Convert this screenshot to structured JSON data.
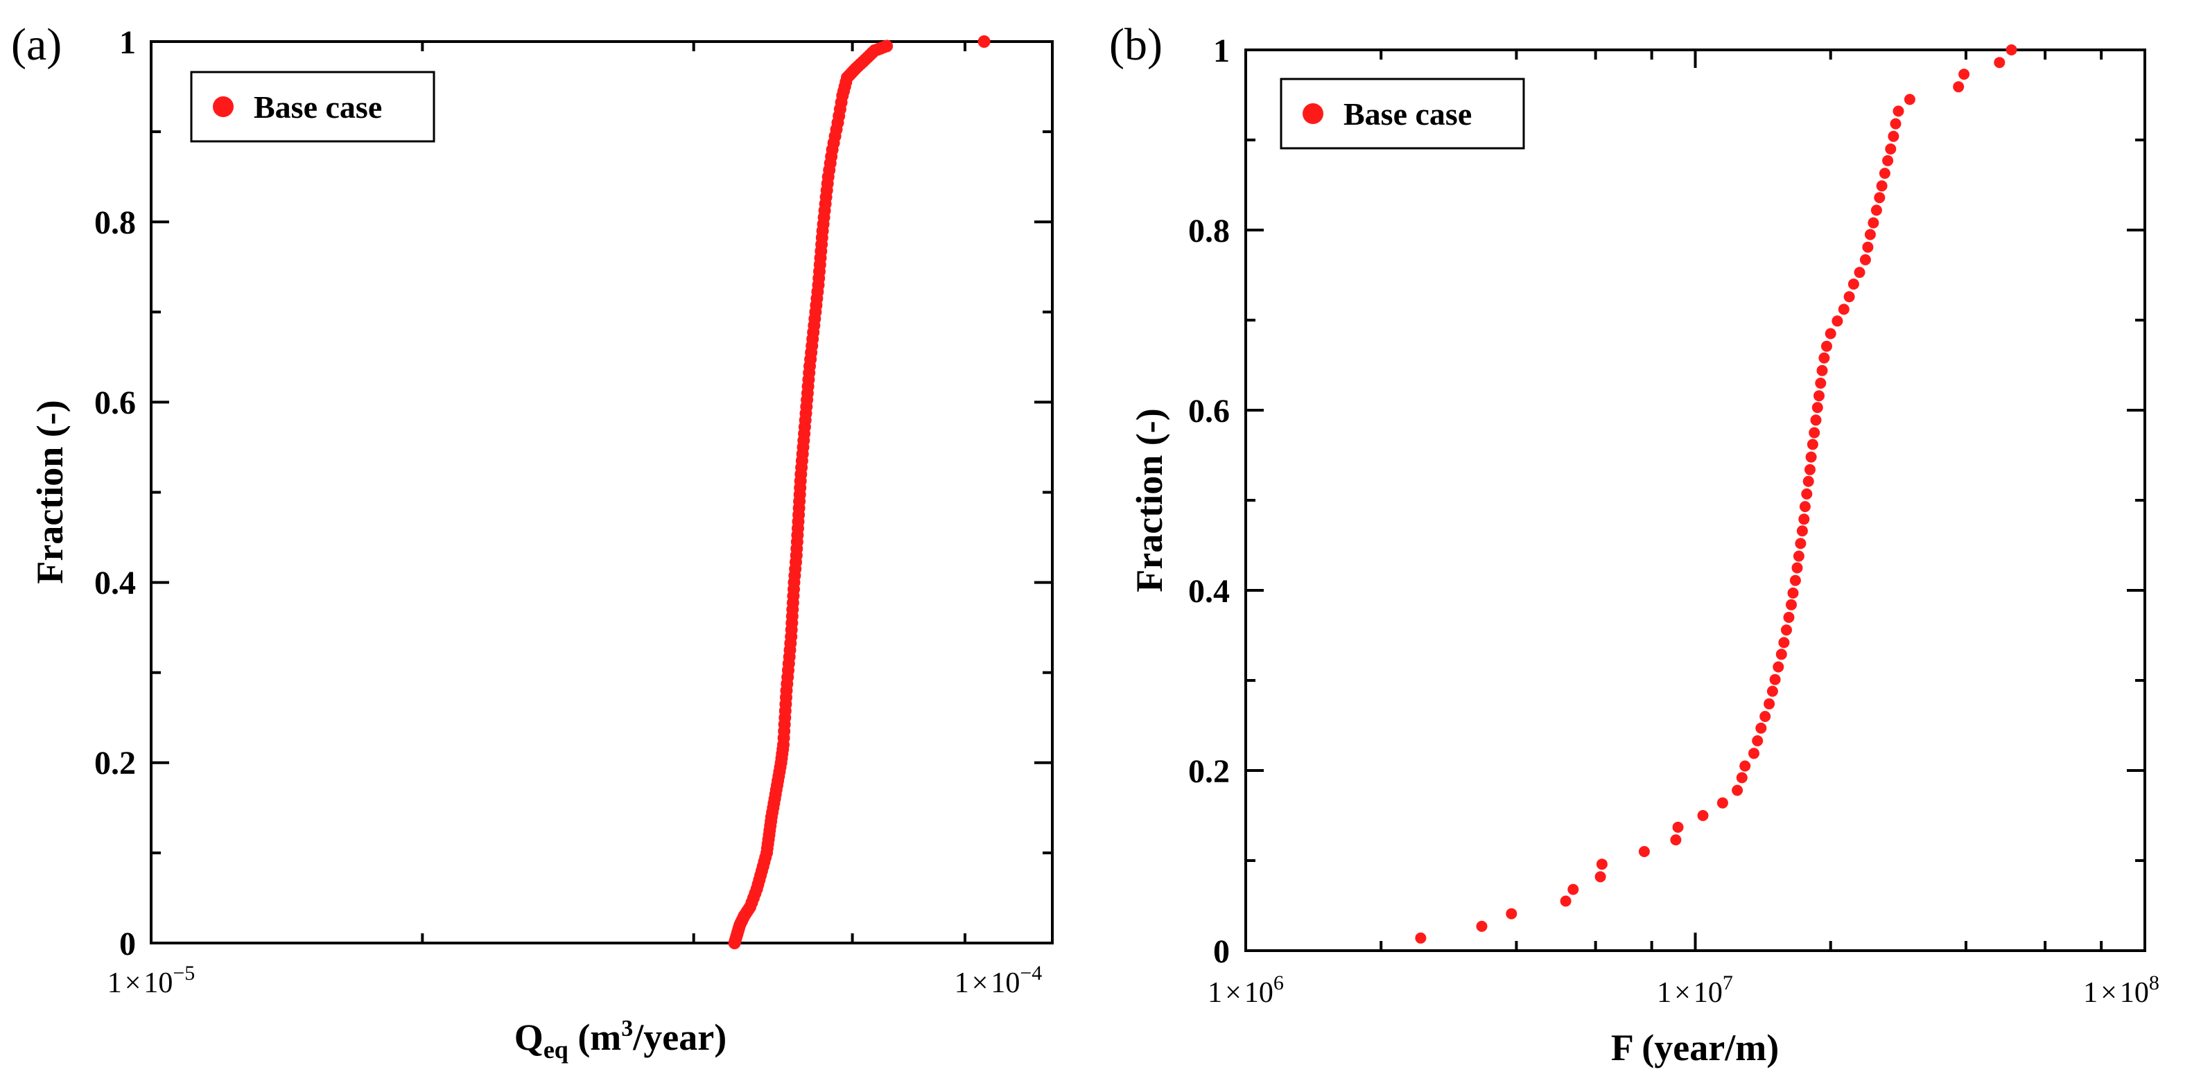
{
  "colors": {
    "marker": "#ff1a1a",
    "axis": "#000000",
    "background": "#ffffff"
  },
  "chart_data": [
    {
      "panel": "(a)",
      "type": "scatter",
      "title": "",
      "xlabel": "Q",
      "xlabel_sub": "eq",
      "xlabel_unit_pre": " (m",
      "xlabel_sup": "3",
      "xlabel_unit_post": "/year)",
      "ylabel": "Fraction (-)",
      "xscale": "log",
      "xlim": [
        1e-05,
        0.0001
      ],
      "ylim": [
        0,
        1
      ],
      "xticks": [
        {
          "mant": "1",
          "times": "×",
          "base": "10",
          "exp": "−5"
        },
        {
          "mant": "1",
          "times": "×",
          "base": "10",
          "exp": "−4"
        }
      ],
      "yticks": [
        "0",
        "0.2",
        "0.4",
        "0.6",
        "0.8",
        "1"
      ],
      "legend": {
        "label": "Base case",
        "position": "top-left"
      },
      "series": [
        {
          "name": "Base case",
          "points": [
            [
              4.44e-05,
              0.0
            ],
            [
              4.47e-05,
              0.01
            ],
            [
              4.5e-05,
              0.02
            ],
            [
              4.55e-05,
              0.03
            ],
            [
              4.62e-05,
              0.04
            ],
            [
              4.7e-05,
              0.06
            ],
            [
              4.76e-05,
              0.08
            ],
            [
              4.82e-05,
              0.1
            ],
            [
              4.85e-05,
              0.12
            ],
            [
              4.88e-05,
              0.14
            ],
            [
              4.92e-05,
              0.16
            ],
            [
              4.96e-05,
              0.18
            ],
            [
              5e-05,
              0.2
            ],
            [
              5.03e-05,
              0.22
            ],
            [
              5.05e-05,
              0.25
            ],
            [
              5.07e-05,
              0.28
            ],
            [
              5.1e-05,
              0.31
            ],
            [
              5.13e-05,
              0.34
            ],
            [
              5.15e-05,
              0.37
            ],
            [
              5.17e-05,
              0.4
            ],
            [
              5.2e-05,
              0.43
            ],
            [
              5.22e-05,
              0.46
            ],
            [
              5.24e-05,
              0.49
            ],
            [
              5.26e-05,
              0.52
            ],
            [
              5.29e-05,
              0.55
            ],
            [
              5.32e-05,
              0.58
            ],
            [
              5.35e-05,
              0.61
            ],
            [
              5.38e-05,
              0.64
            ],
            [
              5.42e-05,
              0.67
            ],
            [
              5.46e-05,
              0.7
            ],
            [
              5.5e-05,
              0.73
            ],
            [
              5.53e-05,
              0.76
            ],
            [
              5.56e-05,
              0.79
            ],
            [
              5.6e-05,
              0.82
            ],
            [
              5.64e-05,
              0.85
            ],
            [
              5.7e-05,
              0.88
            ],
            [
              5.78e-05,
              0.91
            ],
            [
              5.85e-05,
              0.94
            ],
            [
              5.92e-05,
              0.96
            ],
            [
              6.05e-05,
              0.97
            ],
            [
              6.2e-05,
              0.98
            ],
            [
              6.35e-05,
              0.99
            ],
            [
              6.55e-05,
              0.995
            ],
            [
              8.4e-05,
              1.0
            ]
          ]
        }
      ]
    },
    {
      "panel": "(b)",
      "type": "scatter",
      "title": "",
      "xlabel": "F (year/m)",
      "ylabel": "Fraction (-)",
      "xscale": "log",
      "xlim": [
        1000000,
        100000000
      ],
      "ylim": [
        0,
        1
      ],
      "xticks": [
        {
          "mant": "1",
          "times": "×",
          "base": "10",
          "exp": "6"
        },
        {
          "mant": "1",
          "times": "×",
          "base": "10",
          "exp": "7"
        },
        {
          "mant": "1",
          "times": "×",
          "base": "10",
          "exp": "8"
        }
      ],
      "yticks": [
        "0",
        "0.2",
        "0.4",
        "0.6",
        "0.8",
        "1"
      ],
      "legend": {
        "label": "Base case",
        "position": "top-left"
      },
      "series": [
        {
          "name": "Base case",
          "points": [
            [
              2450000,
              0.014
            ],
            [
              3350000,
              0.027
            ],
            [
              3900000,
              0.041
            ],
            [
              5150000,
              0.055
            ],
            [
              5350000,
              0.068
            ],
            [
              6150000,
              0.082
            ],
            [
              6200000,
              0.096
            ],
            [
              7700000,
              0.11
            ],
            [
              9050000,
              0.123
            ],
            [
              9150000,
              0.137
            ],
            [
              10400000,
              0.15
            ],
            [
              11500000,
              0.164
            ],
            [
              12400000,
              0.178
            ],
            [
              12700000,
              0.192
            ],
            [
              12900000,
              0.205
            ],
            [
              13500000,
              0.219
            ],
            [
              13750000,
              0.233
            ],
            [
              14000000,
              0.247
            ],
            [
              14300000,
              0.26
            ],
            [
              14600000,
              0.274
            ],
            [
              14850000,
              0.288
            ],
            [
              15050000,
              0.301
            ],
            [
              15300000,
              0.315
            ],
            [
              15550000,
              0.329
            ],
            [
              15750000,
              0.342
            ],
            [
              15950000,
              0.356
            ],
            [
              16150000,
              0.37
            ],
            [
              16350000,
              0.384
            ],
            [
              16500000,
              0.397
            ],
            [
              16700000,
              0.411
            ],
            [
              16850000,
              0.425
            ],
            [
              17000000,
              0.438
            ],
            [
              17150000,
              0.452
            ],
            [
              17300000,
              0.466
            ],
            [
              17450000,
              0.479
            ],
            [
              17550000,
              0.493
            ],
            [
              17700000,
              0.507
            ],
            [
              17850000,
              0.521
            ],
            [
              18000000,
              0.534
            ],
            [
              18100000,
              0.548
            ],
            [
              18250000,
              0.562
            ],
            [
              18400000,
              0.575
            ],
            [
              18550000,
              0.589
            ],
            [
              18700000,
              0.603
            ],
            [
              18850000,
              0.616
            ],
            [
              19000000,
              0.63
            ],
            [
              19150000,
              0.644
            ],
            [
              19350000,
              0.658
            ],
            [
              19600000,
              0.671
            ],
            [
              20000000,
              0.685
            ],
            [
              20700000,
              0.699
            ],
            [
              21400000,
              0.712
            ],
            [
              22000000,
              0.726
            ],
            [
              22500000,
              0.74
            ],
            [
              23200000,
              0.753
            ],
            [
              23900000,
              0.767
            ],
            [
              24200000,
              0.781
            ],
            [
              24500000,
              0.795
            ],
            [
              24900000,
              0.808
            ],
            [
              25300000,
              0.822
            ],
            [
              25700000,
              0.836
            ],
            [
              26000000,
              0.849
            ],
            [
              26400000,
              0.863
            ],
            [
              26800000,
              0.877
            ],
            [
              27200000,
              0.89
            ],
            [
              27600000,
              0.904
            ],
            [
              27900000,
              0.918
            ],
            [
              28300000,
              0.932
            ],
            [
              30000000,
              0.945
            ],
            [
              38500000,
              0.959
            ],
            [
              39600000,
              0.973
            ],
            [
              47500000,
              0.986
            ],
            [
              50500000,
              1.0
            ]
          ]
        }
      ]
    }
  ]
}
